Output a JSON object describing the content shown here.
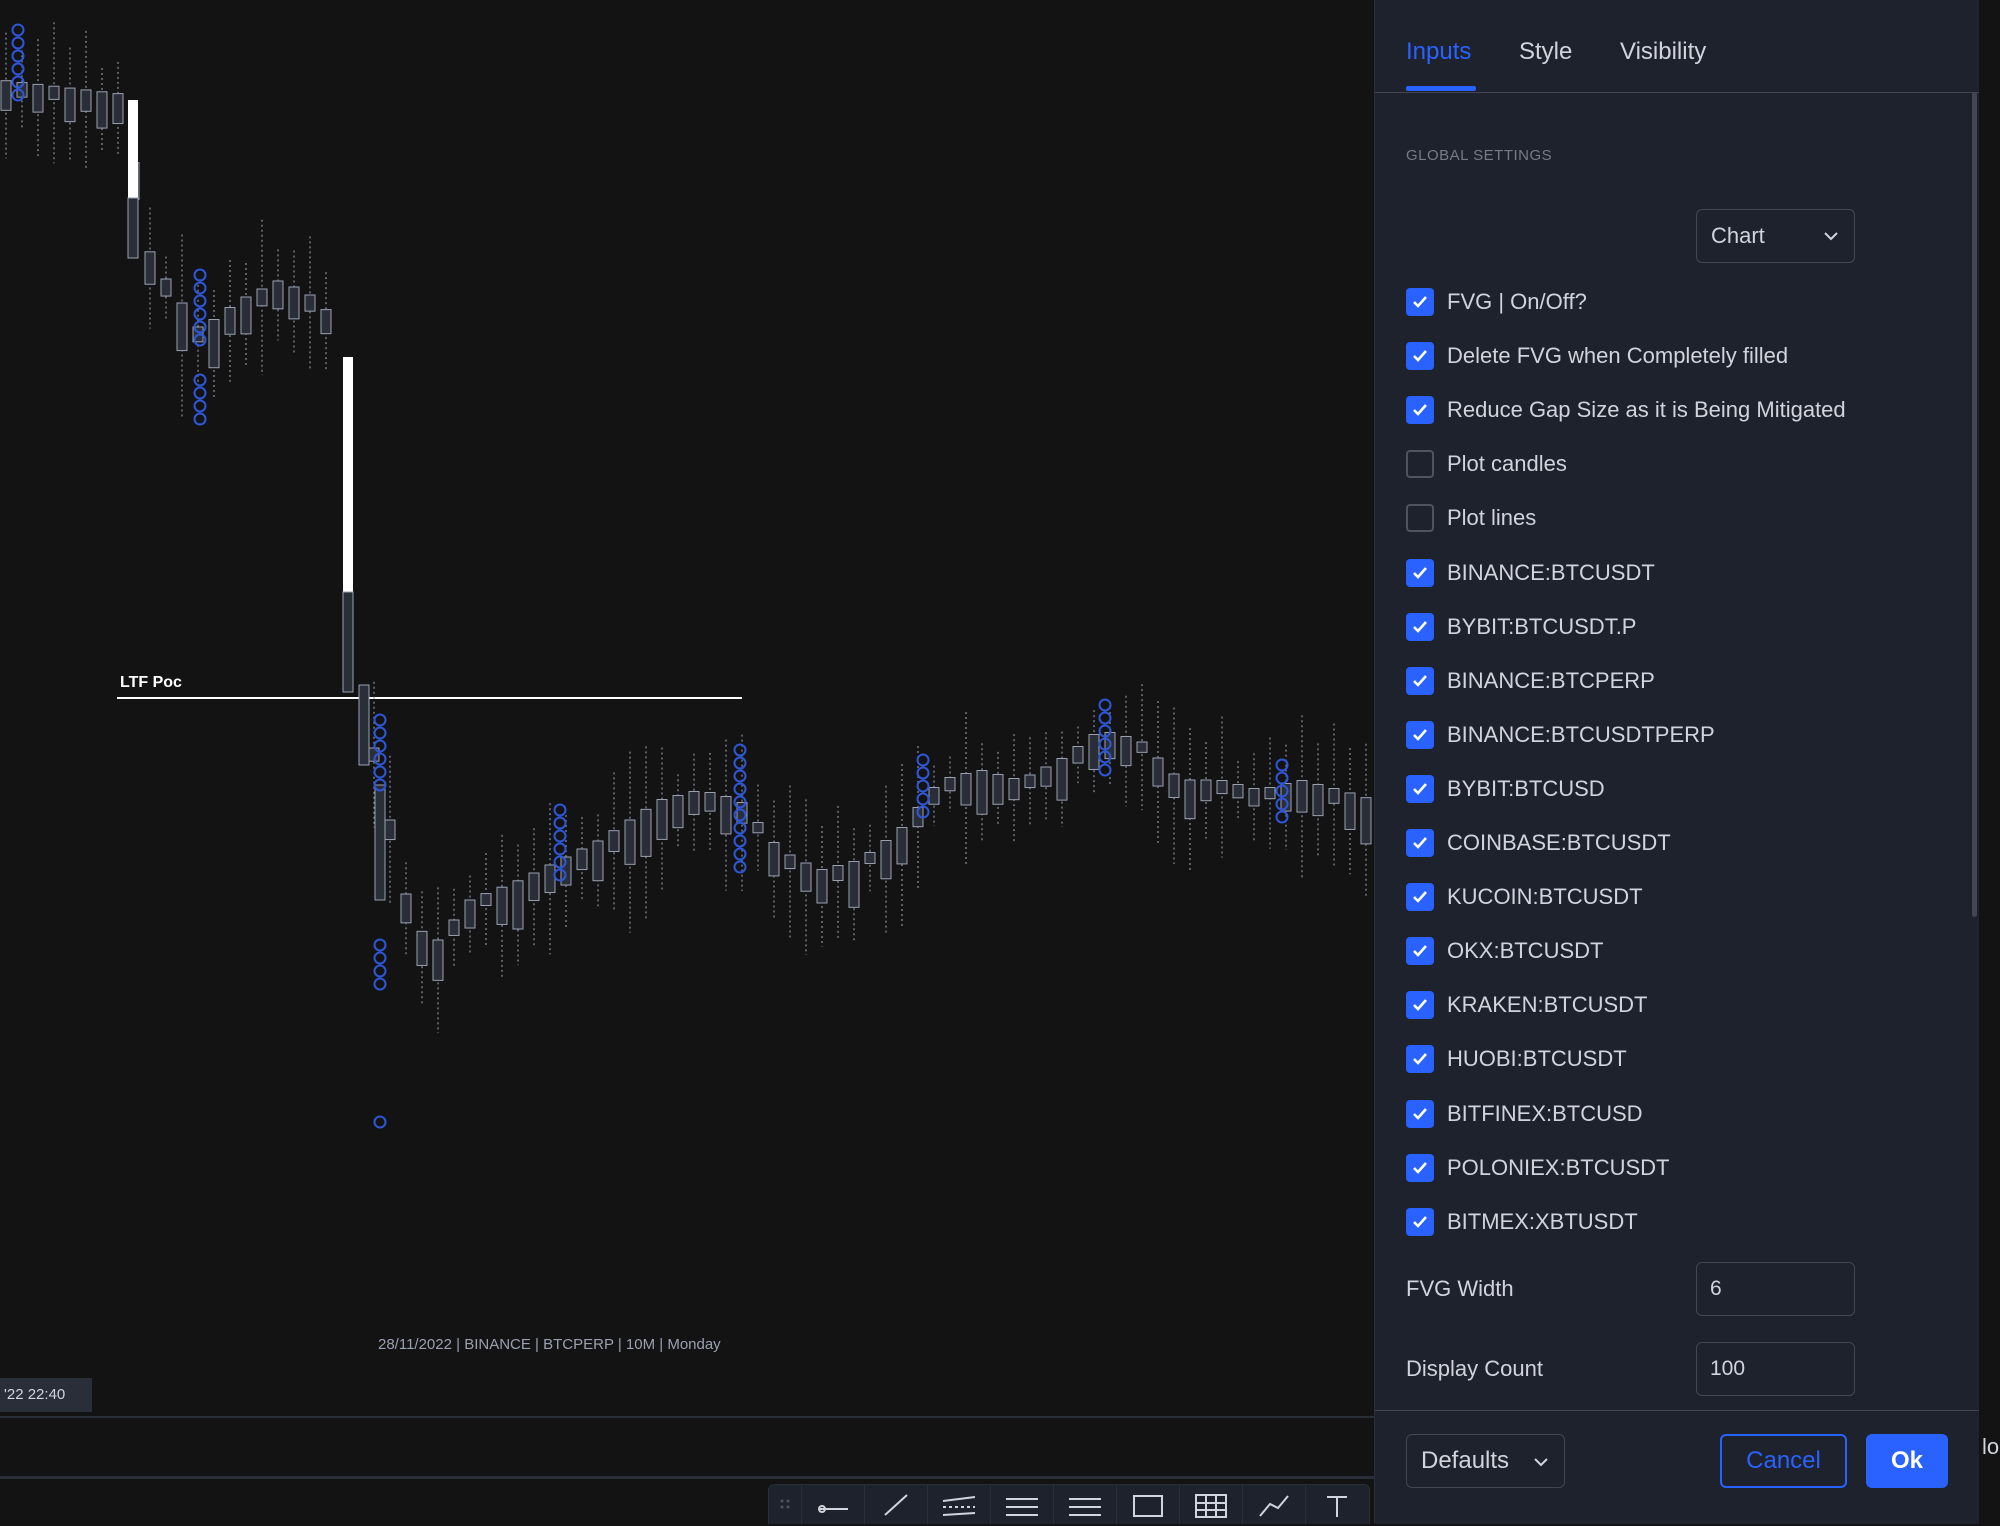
{
  "chart": {
    "poc_label": "LTF Poc",
    "footer_text": "28/11/2022 | BINANCE | BTCPERP | 10M | Monday",
    "time_badge": "'22  22:40",
    "edge_text": "lo"
  },
  "dialog": {
    "tabs": [
      {
        "label": "Inputs",
        "active": true
      },
      {
        "label": "Style",
        "active": false
      },
      {
        "label": "Visibility",
        "active": false
      }
    ],
    "section_title": "GLOBAL SETTINGS",
    "timeframe_select": "Chart",
    "checkboxes": [
      {
        "label": "FVG | On/Off?",
        "checked": true
      },
      {
        "label": "Delete FVG when Completely filled",
        "checked": true
      },
      {
        "label": "Reduce Gap Size as it is Being Mitigated",
        "checked": true
      },
      {
        "label": "Plot candles",
        "checked": false
      },
      {
        "label": "Plot lines",
        "checked": false
      },
      {
        "label": "BINANCE:BTCUSDT",
        "checked": true
      },
      {
        "label": "BYBIT:BTCUSDT.P",
        "checked": true
      },
      {
        "label": "BINANCE:BTCPERP",
        "checked": true
      },
      {
        "label": "BINANCE:BTCUSDTPERP",
        "checked": true
      },
      {
        "label": "BYBIT:BTCUSD",
        "checked": true
      },
      {
        "label": "COINBASE:BTCUSDT",
        "checked": true
      },
      {
        "label": "KUCOIN:BTCUSDT",
        "checked": true
      },
      {
        "label": "OKX:BTCUSDT",
        "checked": true
      },
      {
        "label": "KRAKEN:BTCUSDT",
        "checked": true
      },
      {
        "label": "HUOBI:BTCUSDT",
        "checked": true
      },
      {
        "label": "BITFINEX:BTCUSD",
        "checked": true
      },
      {
        "label": "POLONIEX:BTCUSDT",
        "checked": true
      },
      {
        "label": "BITMEX:XBTUSDT",
        "checked": true
      }
    ],
    "fvg_width": {
      "label": "FVG Width",
      "value": "6"
    },
    "display_count": {
      "label": "Display Count",
      "value": "100"
    },
    "footer": {
      "defaults": "Defaults",
      "cancel": "Cancel",
      "ok": "Ok"
    }
  },
  "colors": {
    "accent": "#2962ff",
    "panel": "#1e222d",
    "chart_bg": "#131314",
    "circle": "#2f56d6"
  },
  "drawing_tools": [
    "drag-handle-icon",
    "horizontal-ray-icon",
    "trend-line-icon",
    "parallel-channel-icon",
    "fib-retracement-icon",
    "horizontal-lines-icon",
    "rectangle-icon",
    "grid-icon",
    "path-icon",
    "text-icon"
  ]
}
